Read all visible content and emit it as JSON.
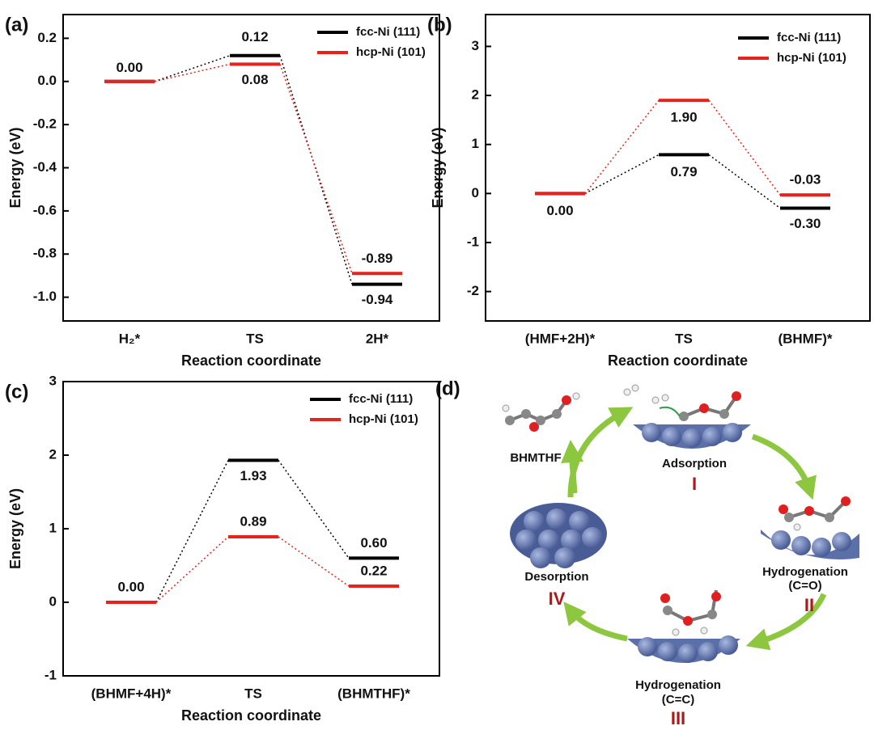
{
  "chart_data": [
    {
      "type": "energy",
      "label": "(a)",
      "ylabel": "Energy (eV)",
      "xlabel": "Reaction coordinate",
      "categories": [
        "H₂*",
        "TS",
        "2H*"
      ],
      "series": [
        {
          "name": "fcc-Ni (111)",
          "color": "#000000",
          "values": [
            0.0,
            0.12,
            -0.94
          ],
          "value_labels": [
            "0.00",
            "0.12",
            "-0.94"
          ]
        },
        {
          "name": "hcp-Ni (101)",
          "color": "#e8221c",
          "values": [
            0.0,
            0.08,
            -0.89
          ],
          "value_labels": [
            null,
            "0.08",
            "-0.89"
          ]
        }
      ],
      "ylim": [
        -1.11,
        0.31
      ],
      "yticks": [
        {
          "value": -1.0,
          "label": "-1.0"
        },
        -0.8,
        -0.6,
        -0.4,
        -0.2,
        {
          "value": 0,
          "label": "0.0"
        },
        0.2
      ]
    },
    {
      "type": "energy",
      "label": "(b)",
      "ylabel": "Energy (eV)",
      "xlabel": "Reaction coordinate",
      "categories": [
        "(HMF+2H)*",
        "TS",
        "(BHMF)*"
      ],
      "series": [
        {
          "name": "fcc-Ni (111)",
          "color": "#000000",
          "values": [
            0.0,
            0.79,
            -0.3
          ],
          "value_labels": [
            "0.00",
            "0.79",
            "-0.30"
          ]
        },
        {
          "name": "hcp-Ni (101)",
          "color": "#e8221c",
          "values": [
            0.0,
            1.9,
            -0.03
          ],
          "value_labels": [
            null,
            "1.90",
            "-0.03"
          ]
        }
      ],
      "ylim": [
        -2.6,
        3.65
      ],
      "yticks": [
        -2,
        -1,
        0,
        1,
        2,
        3
      ]
    },
    {
      "type": "energy",
      "label": "(c)",
      "ylabel": "Energy (eV)",
      "xlabel": "Reaction coordinate",
      "categories": [
        "(BHMF+4H)*",
        "TS",
        "(BHMTHF)*"
      ],
      "series": [
        {
          "name": "fcc-Ni (111)",
          "color": "#000000",
          "values": [
            0.0,
            1.93,
            0.6
          ],
          "value_labels": [
            "0.00",
            "1.93",
            "0.60"
          ]
        },
        {
          "name": "hcp-Ni (101)",
          "color": "#e8221c",
          "values": [
            0.0,
            0.89,
            0.22
          ],
          "value_labels": [
            null,
            "0.89",
            "0.22"
          ]
        }
      ],
      "ylim": [
        -1,
        3
      ],
      "yticks": [
        -1,
        0,
        1,
        2,
        3
      ]
    }
  ],
  "diagram": {
    "label": "(d)",
    "product": "BHMTHF",
    "steps": [
      {
        "name": "Adsorption",
        "numeral": "I"
      },
      {
        "name": "Hydrogenation",
        "detail": "(C=O)",
        "numeral": "II"
      },
      {
        "name": "Hydrogenation",
        "detail": "(C=C)",
        "numeral": "III"
      },
      {
        "name": "Desorption",
        "numeral": "IV"
      }
    ]
  }
}
